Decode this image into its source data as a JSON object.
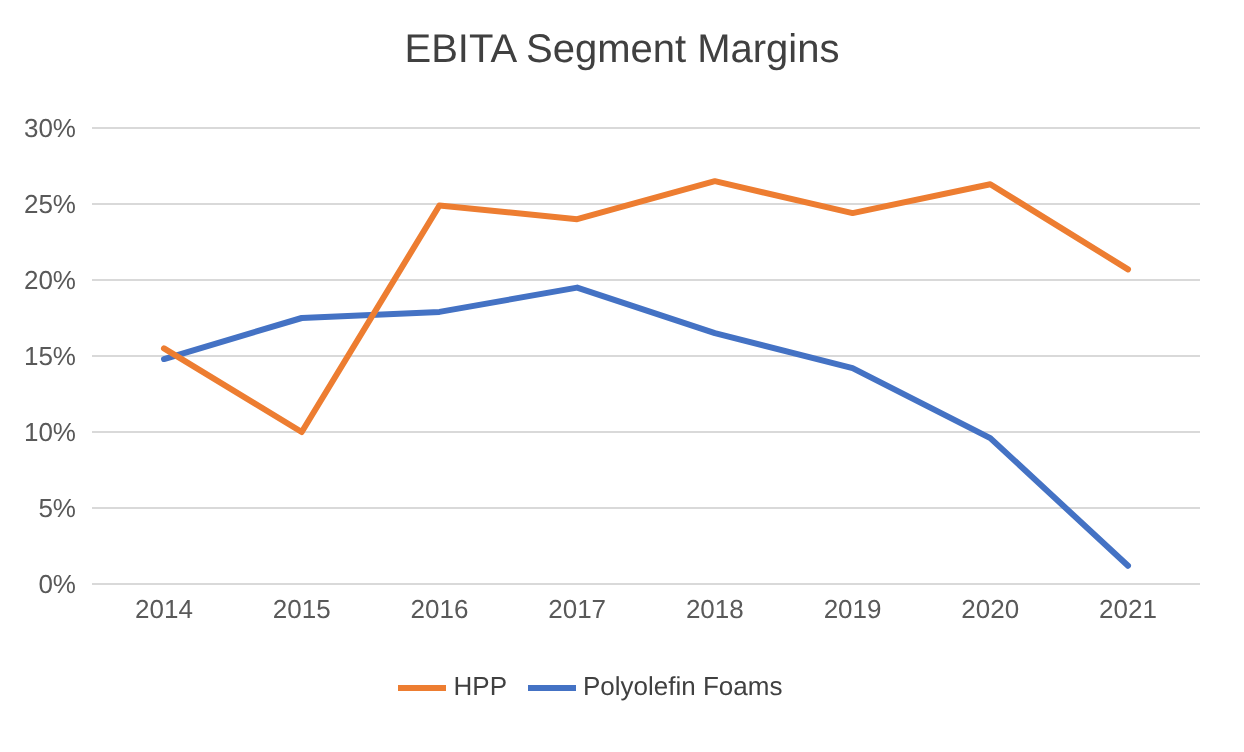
{
  "chart_data": {
    "type": "line",
    "title": "EBITA Segment Margins",
    "categories": [
      "2014",
      "2015",
      "2016",
      "2017",
      "2018",
      "2019",
      "2020",
      "2021"
    ],
    "series": [
      {
        "name": "Polyolefin Foams",
        "color": "#4472c4",
        "values": [
          14.8,
          17.5,
          17.9,
          19.5,
          16.5,
          14.2,
          9.6,
          1.2
        ]
      },
      {
        "name": "HPP",
        "color": "#ed7d31",
        "values": [
          15.5,
          10.0,
          24.9,
          24.0,
          26.5,
          24.4,
          26.3,
          20.7
        ]
      }
    ],
    "ylim": [
      0,
      30
    ],
    "yticks": [
      {
        "value": 0,
        "label": "0%"
      },
      {
        "value": 5,
        "label": "5%"
      },
      {
        "value": 10,
        "label": "10%"
      },
      {
        "value": 15,
        "label": "15%"
      },
      {
        "value": 20,
        "label": "20%"
      },
      {
        "value": 25,
        "label": "25%"
      },
      {
        "value": 30,
        "label": "30%"
      }
    ],
    "grid": "y",
    "legend": "bottom",
    "marker": "none",
    "line_style": "solid"
  }
}
